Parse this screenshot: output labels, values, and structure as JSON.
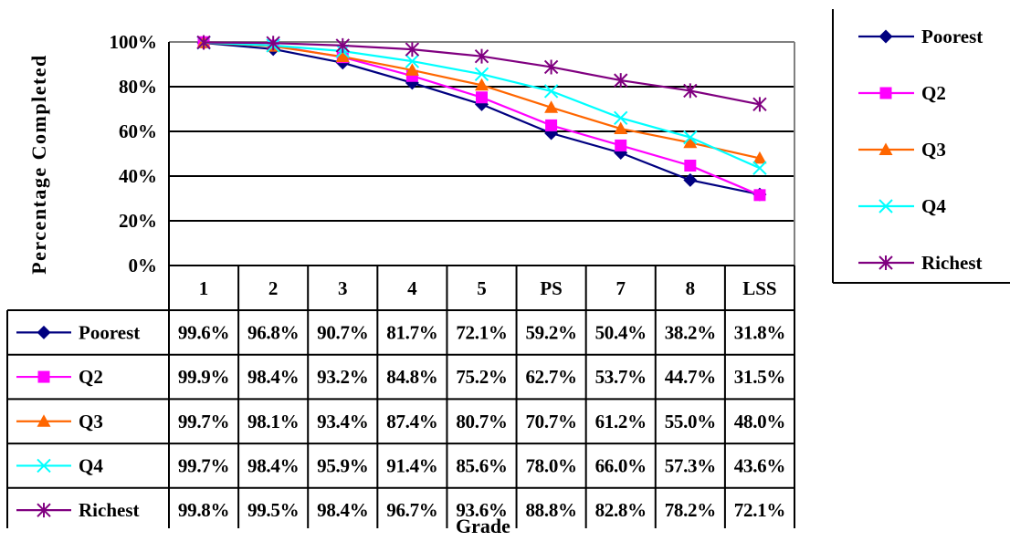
{
  "chart_data": {
    "type": "line",
    "title": "",
    "xlabel": "Grade",
    "ylabel": "Percentage Completed",
    "ylim": [
      0,
      100
    ],
    "y_ticks": [
      "0%",
      "20%",
      "40%",
      "60%",
      "80%",
      "100%"
    ],
    "categories": [
      "1",
      "2",
      "3",
      "4",
      "5",
      "PS",
      "7",
      "8",
      "LSS"
    ],
    "grid": true,
    "legend_position": "right",
    "data_table": true,
    "series": [
      {
        "name": "Poorest",
        "color": "#000080",
        "marker": "diamond",
        "values": [
          99.6,
          96.8,
          90.7,
          81.7,
          72.1,
          59.2,
          50.4,
          38.2,
          31.8
        ],
        "labels": [
          "99.6%",
          "96.8%",
          "90.7%",
          "81.7%",
          "72.1%",
          "59.2%",
          "50.4%",
          "38.2%",
          "31.8%"
        ]
      },
      {
        "name": "Q2",
        "color": "#FF00FF",
        "marker": "square",
        "values": [
          99.9,
          98.4,
          93.2,
          84.8,
          75.2,
          62.7,
          53.7,
          44.7,
          31.5
        ],
        "labels": [
          "99.9%",
          "98.4%",
          "93.2%",
          "84.8%",
          "75.2%",
          "62.7%",
          "53.7%",
          "44.7%",
          "31.5%"
        ]
      },
      {
        "name": "Q3",
        "color": "#FF6600",
        "marker": "triangle",
        "values": [
          99.7,
          98.1,
          93.4,
          87.4,
          80.7,
          70.7,
          61.2,
          55.0,
          48.0
        ],
        "labels": [
          "99.7%",
          "98.1%",
          "93.4%",
          "87.4%",
          "80.7%",
          "70.7%",
          "61.2%",
          "55.0%",
          "48.0%"
        ]
      },
      {
        "name": "Q4",
        "color": "#00FFFF",
        "marker": "x",
        "values": [
          99.7,
          98.4,
          95.9,
          91.4,
          85.6,
          78.0,
          66.0,
          57.3,
          43.6
        ],
        "labels": [
          "99.7%",
          "98.4%",
          "95.9%",
          "91.4%",
          "85.6%",
          "78.0%",
          "66.0%",
          "57.3%",
          "43.6%"
        ]
      },
      {
        "name": "Richest",
        "color": "#800080",
        "marker": "star",
        "values": [
          99.8,
          99.5,
          98.4,
          96.7,
          93.6,
          88.8,
          82.8,
          78.2,
          72.1
        ],
        "labels": [
          "99.8%",
          "99.5%",
          "98.4%",
          "96.7%",
          "93.6%",
          "88.8%",
          "82.8%",
          "78.2%",
          "72.1%"
        ]
      }
    ]
  }
}
